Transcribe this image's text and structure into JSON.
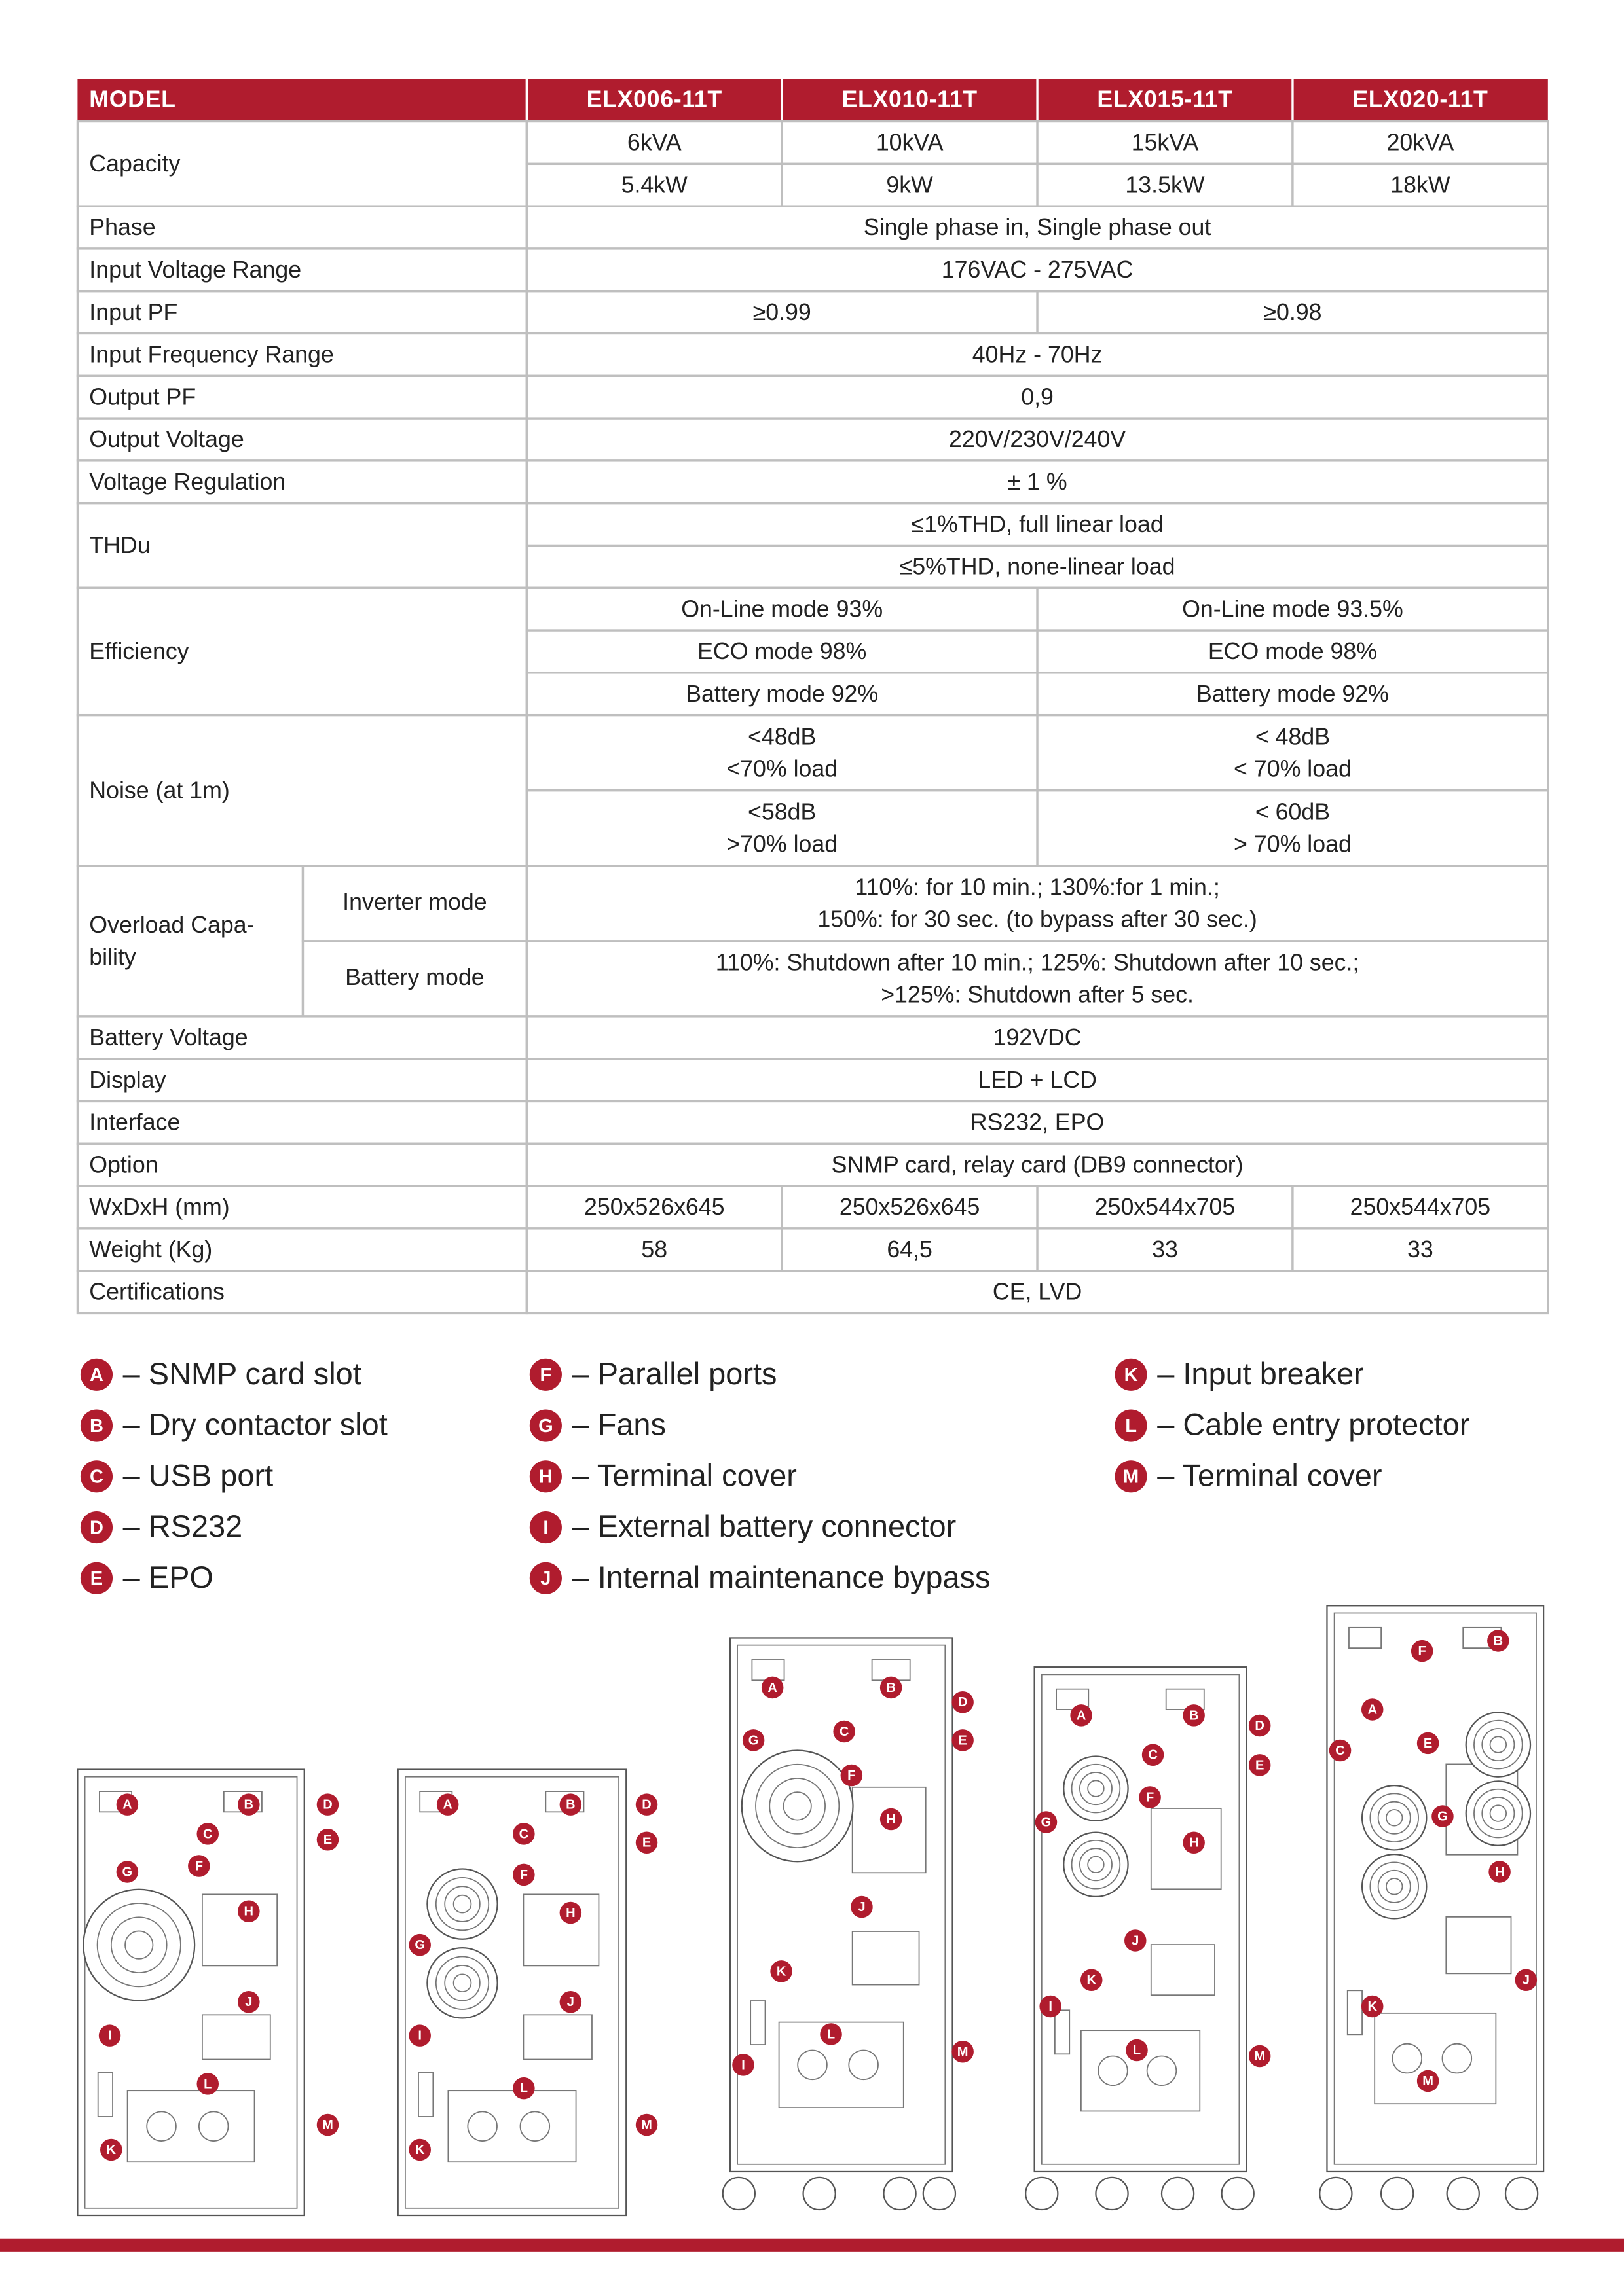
{
  "table": {
    "header": [
      "MODEL",
      "ELX006-11T",
      "ELX010-11T",
      "ELX015-11T",
      "ELX020-11T"
    ],
    "rows": [
      {
        "label": "Capacity",
        "cells": [
          [
            "6kVA",
            "10kVA",
            "15kVA",
            "20kVA"
          ],
          [
            "5.4kW",
            "9kW",
            "13.5kW",
            "18kW"
          ]
        ]
      },
      {
        "label": "Phase",
        "cells": [
          [
            "Single phase in, Single phase out"
          ]
        ]
      },
      {
        "label": "Input Voltage Range",
        "cells": [
          [
            "176VAC - 275VAC"
          ]
        ]
      },
      {
        "label": "Input PF",
        "cells": [
          [
            "≥0.99",
            "≥0.98"
          ]
        ]
      },
      {
        "label": "Input Frequency Range",
        "cells": [
          [
            "40Hz - 70Hz"
          ]
        ]
      },
      {
        "label": "Output PF",
        "cells": [
          [
            "0,9"
          ]
        ]
      },
      {
        "label": "Output Voltage",
        "cells": [
          [
            "220V/230V/240V"
          ]
        ]
      },
      {
        "label": "Voltage Regulation",
        "cells": [
          [
            "± 1 %"
          ]
        ]
      },
      {
        "label": "THDu",
        "cells": [
          [
            "≤1%THD, full linear load"
          ],
          [
            "≤5%THD, none-linear load"
          ]
        ]
      },
      {
        "label": "Efficiency",
        "cells": [
          [
            "On-Line mode 93%",
            "On-Line mode 93.5%"
          ],
          [
            "ECO mode 98%",
            "ECO mode 98%"
          ],
          [
            "Battery mode 92%",
            "Battery mode 92%"
          ]
        ]
      },
      {
        "label": "Noise (at 1m)",
        "cells": [
          [
            [
              "<48dB",
              "<70% load"
            ],
            [
              "< 48dB",
              "< 70% load"
            ]
          ],
          [
            [
              "<58dB",
              ">70% load"
            ],
            [
              "< 60dB",
              "> 70% load"
            ]
          ]
        ]
      },
      {
        "label": [
          "Overload Capa-",
          "bility"
        ],
        "sublabels": [
          "Inverter mode",
          "Battery mode"
        ],
        "cells": [
          [
            [
              "110%: for 10 min.; 130%:for 1 min.;",
              "150%: for 30 sec. (to bypass after 30 sec.)"
            ]
          ],
          [
            [
              "110%: Shutdown after 10 min.; 125%: Shutdown after 10 sec.;",
              ">125%: Shutdown after 5 sec."
            ]
          ]
        ]
      },
      {
        "label": "Battery Voltage",
        "cells": [
          [
            "192VDC"
          ]
        ]
      },
      {
        "label": "Display",
        "cells": [
          [
            "LED + LCD"
          ]
        ]
      },
      {
        "label": "Interface",
        "cells": [
          [
            "RS232, EPO"
          ]
        ]
      },
      {
        "label": "Option",
        "cells": [
          [
            "SNMP card, relay card (DB9 connector)"
          ]
        ]
      },
      {
        "label": "WxDxH (mm)",
        "cells": [
          [
            "250x526x645",
            "250x526x645",
            "250x544x705",
            "250x544x705"
          ]
        ]
      },
      {
        "label": "Weight (Kg)",
        "cells": [
          [
            "58",
            "64,5",
            "33",
            "33"
          ]
        ]
      },
      {
        "label": "Certifications",
        "cells": [
          [
            "CE, LVD"
          ]
        ]
      }
    ]
  },
  "legend": [
    [
      {
        "letter": "A",
        "text": "– SNMP card slot"
      },
      {
        "letter": "B",
        "text": "– Dry contactor slot"
      },
      {
        "letter": "C",
        "text": "– USB port"
      },
      {
        "letter": "D",
        "text": "– RS232"
      },
      {
        "letter": "E",
        "text": "– EPO"
      }
    ],
    [
      {
        "letter": "F",
        "text": "– Parallel ports"
      },
      {
        "letter": "G",
        "text": "– Fans"
      },
      {
        "letter": "H",
        "text": "– Terminal cover"
      },
      {
        "letter": "I",
        "text": "– External battery connector"
      },
      {
        "letter": "J",
        "text": "– Internal maintenance bypass"
      }
    ],
    [
      {
        "letter": "K",
        "text": "– Input breaker"
      },
      {
        "letter": "L",
        "text": "– Cable entry protector"
      },
      {
        "letter": "M",
        "text": "– Terminal cover"
      }
    ]
  ],
  "diagrams": [
    {
      "callouts": [
        "A",
        "B",
        "D",
        "C",
        "E",
        "F",
        "G",
        "H",
        "J",
        "I",
        "L",
        "M",
        "K"
      ]
    },
    {
      "callouts": [
        "A",
        "B",
        "D",
        "C",
        "E",
        "F",
        "G",
        "H",
        "J",
        "I",
        "L",
        "M",
        "K"
      ]
    },
    {
      "callouts": [
        "A",
        "B",
        "D",
        "C",
        "E",
        "G",
        "F",
        "H",
        "J",
        "K",
        "L",
        "M",
        "I"
      ]
    },
    {
      "callouts": [
        "A",
        "B",
        "D",
        "C",
        "E",
        "F",
        "G",
        "H",
        "J",
        "K",
        "I",
        "L",
        "M"
      ]
    },
    {
      "callouts": [
        "B",
        "F",
        "A",
        "E",
        "C",
        "G",
        "H",
        "J",
        "K",
        "M"
      ]
    }
  ]
}
